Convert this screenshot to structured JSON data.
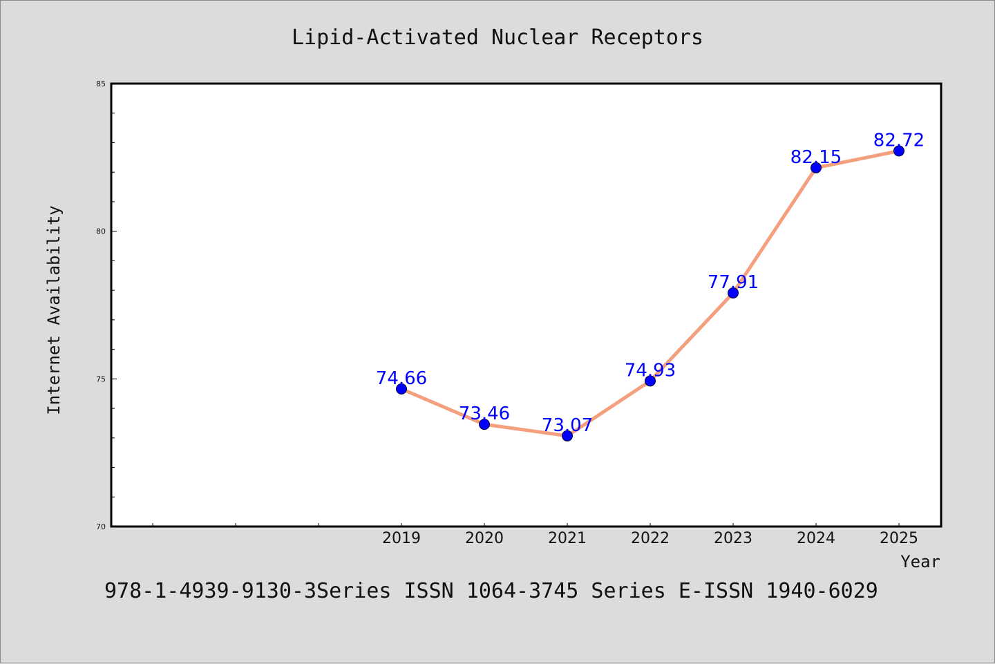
{
  "chart_data": {
    "type": "line",
    "title": "Lipid-Activated Nuclear Receptors",
    "xlabel": "Year",
    "ylabel": "Internet Availability",
    "categories": [
      "2019",
      "2020",
      "2021",
      "2022",
      "2023",
      "2024",
      "2025"
    ],
    "series": [
      {
        "values": [
          74.66,
          73.46,
          73.07,
          74.93,
          77.91,
          82.15,
          82.72
        ]
      }
    ],
    "data_labels": [
      "74.66",
      "73.46",
      "73.07",
      "74.93",
      "77.91",
      "82.15",
      "82.72"
    ],
    "ylim": [
      70,
      85
    ],
    "yticks": [
      70,
      75,
      80,
      85
    ],
    "line_color": "#f4a07f",
    "marker_color": "#0000ff",
    "label_color": "#0000ff",
    "grid": false,
    "legend": "none"
  },
  "footer": "978-1-4939-9130-3Series ISSN 1064-3745 Series E-ISSN 1940-6029"
}
